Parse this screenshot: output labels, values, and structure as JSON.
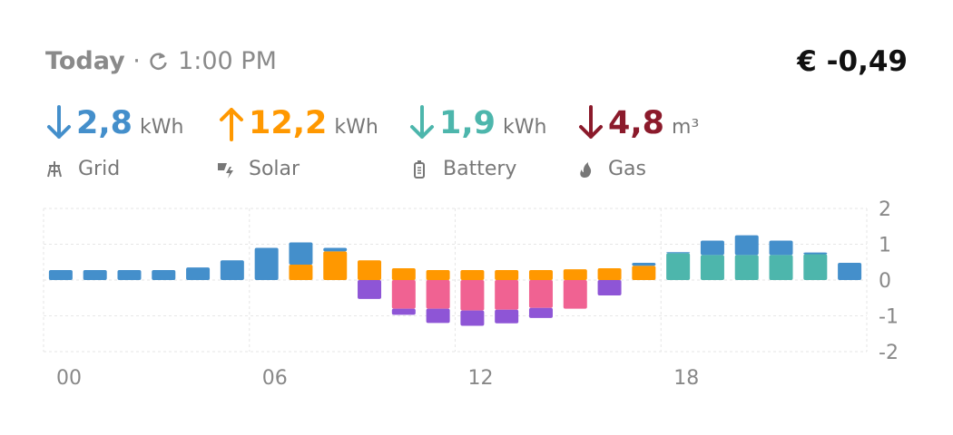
{
  "header": {
    "title": "Today",
    "separator": "·",
    "time": "1:00 PM",
    "cost": "€ -0,49"
  },
  "summary": [
    {
      "value": "2,8",
      "unit": "kWh",
      "label": "Grid",
      "color": "#448fcb"
    },
    {
      "value": "12,2",
      "unit": "kWh",
      "label": "Solar",
      "color": "#ff9800"
    },
    {
      "value": "1,9",
      "unit": "kWh",
      "label": "Battery",
      "color": "#4db6ac"
    },
    {
      "value": "4,8",
      "unit": "m³",
      "label": "Gas",
      "color": "#8b1a2b"
    }
  ],
  "chart_data": {
    "type": "bar",
    "stacked": true,
    "categories": [
      "00",
      null,
      null,
      null,
      null,
      null,
      "06",
      null,
      null,
      null,
      null,
      null,
      "12",
      null,
      null,
      null,
      null,
      null,
      "18",
      null,
      null,
      null,
      null,
      null
    ],
    "series": [
      {
        "color": "#ff9800",
        "values": [
          0,
          0,
          0,
          0,
          0,
          0,
          0,
          0.43,
          0.8,
          0.55,
          0.33,
          0.28,
          0.28,
          0.28,
          0.28,
          0.3,
          0.33,
          0.4,
          0,
          0,
          0,
          0,
          0,
          0
        ]
      },
      {
        "color": "#4db6ac",
        "values": [
          0,
          0,
          0,
          0,
          0,
          0,
          0,
          0,
          0,
          0,
          0,
          0,
          0,
          0,
          0,
          0,
          0,
          0,
          0.75,
          0.7,
          0.7,
          0.7,
          0.72,
          0
        ]
      },
      {
        "color": "#448fcb",
        "values": [
          0.28,
          0.28,
          0.28,
          0.28,
          0.35,
          0.55,
          0.9,
          0.62,
          0.1,
          0,
          0,
          0,
          0,
          0,
          0,
          0,
          0,
          0.08,
          0.03,
          0.4,
          0.55,
          0.4,
          0.05,
          0.48
        ]
      },
      {
        "color": "#f06292",
        "values": [
          0,
          0,
          0,
          0,
          0,
          0,
          0,
          0,
          0,
          0,
          -0.8,
          -0.8,
          -0.85,
          -0.83,
          -0.78,
          -0.8,
          0,
          0,
          0,
          0,
          0,
          0,
          0,
          0
        ]
      },
      {
        "color": "#8e55d6",
        "values": [
          0,
          0,
          0,
          0,
          0,
          0,
          0,
          0,
          0,
          -0.53,
          -0.17,
          -0.4,
          -0.43,
          -0.38,
          -0.28,
          0,
          -0.43,
          0,
          0,
          0,
          0,
          0,
          0,
          0
        ]
      }
    ],
    "ylim": [
      -2,
      2
    ],
    "yticks": [
      2,
      1,
      0,
      -1,
      -2
    ],
    "grid": true
  }
}
